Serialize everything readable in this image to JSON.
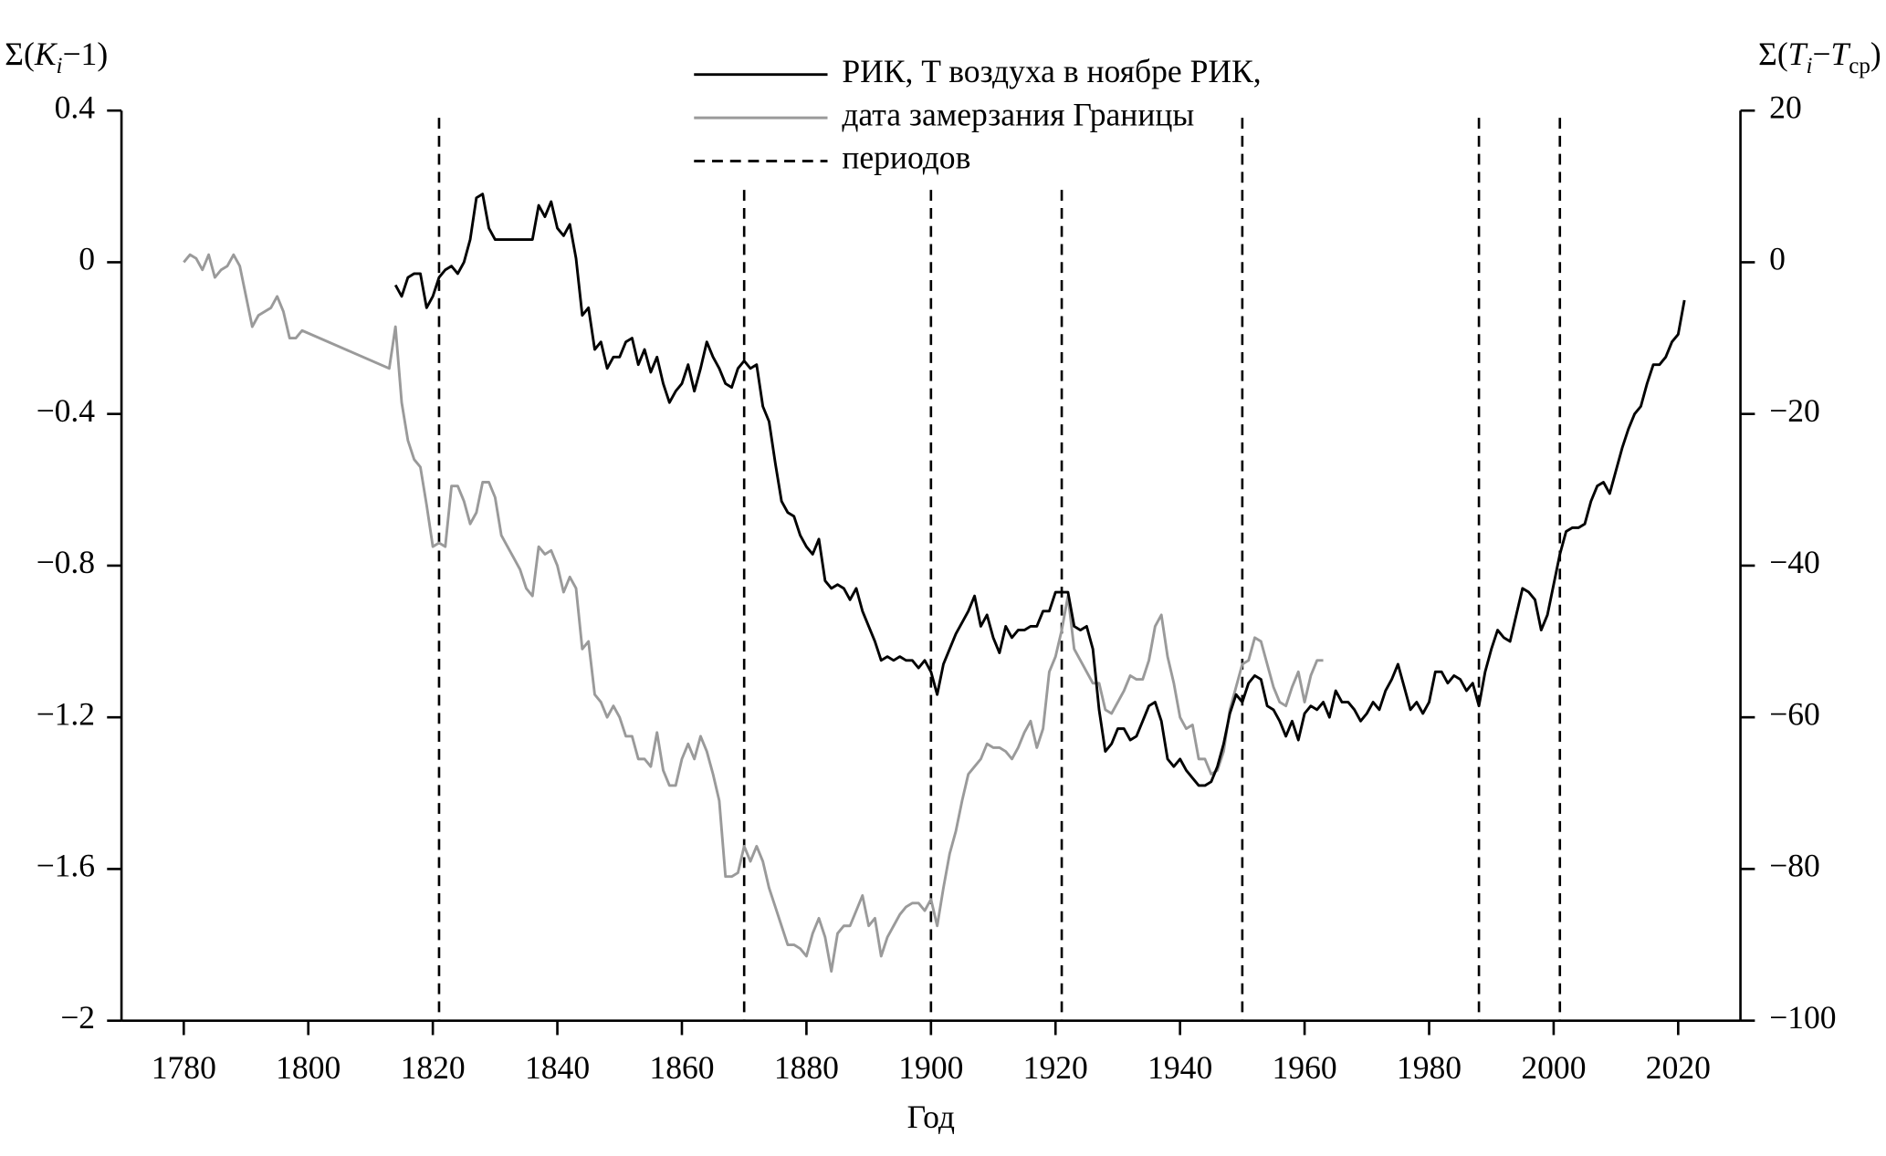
{
  "chart_data": {
    "type": "line",
    "ylabel": [
      "Σ(",
      "K",
      "i",
      "−1)"
    ],
    "y2label": [
      "Σ(",
      "T",
      "i",
      "−",
      "T",
      "ср",
      ")"
    ],
    "xlabel": "Год",
    "xlim": [
      1770,
      2030
    ],
    "xticks": [
      1780,
      1800,
      1820,
      1840,
      1860,
      1880,
      1900,
      1920,
      1940,
      1960,
      1980,
      2000,
      2020
    ],
    "ylim": [
      -2,
      0.4
    ],
    "yticks": [
      {
        "value": -2,
        "label": "−2"
      },
      {
        "value": -1.6,
        "label": "−1.6"
      },
      {
        "value": -1.2,
        "label": "−1.2"
      },
      {
        "value": -0.8,
        "label": "−0.8"
      },
      {
        "value": -0.4,
        "label": "−0.4"
      },
      0,
      0.4
    ],
    "y2lim": [
      -100,
      20
    ],
    "y2ticks": [
      {
        "value": -100,
        "label": "−100"
      },
      {
        "value": -80,
        "label": "−80"
      },
      {
        "value": -60,
        "label": "−60"
      },
      {
        "value": -40,
        "label": "−40"
      },
      {
        "value": -20,
        "label": "−20"
      },
      0,
      20
    ],
    "series": [
      {
        "name": "РИК, T воздуха в ноябре РИК,",
        "color": "#000000",
        "x": [
          1814,
          1815,
          1816,
          1817,
          1818,
          1819,
          1820,
          1821,
          1822,
          1823,
          1824,
          1825,
          1826,
          1827,
          1828,
          1829,
          1830,
          1831,
          1832,
          1833,
          1834,
          1835,
          1836,
          1837,
          1838,
          1839,
          1840,
          1841,
          1842,
          1843,
          1844,
          1845,
          1846,
          1847,
          1848,
          1849,
          1850,
          1851,
          1852,
          1853,
          1854,
          1855,
          1856,
          1857,
          1858,
          1859,
          1860,
          1861,
          1862,
          1863,
          1864,
          1865,
          1866,
          1867,
          1868,
          1869,
          1870,
          1871,
          1872,
          1873,
          1874,
          1875,
          1876,
          1877,
          1878,
          1879,
          1880,
          1881,
          1882,
          1883,
          1884,
          1885,
          1886,
          1887,
          1888,
          1889,
          1890,
          1891,
          1892,
          1893,
          1894,
          1895,
          1896,
          1897,
          1898,
          1899,
          1900,
          1901,
          1902,
          1903,
          1904,
          1905,
          1906,
          1907,
          1908,
          1909,
          1910,
          1911,
          1912,
          1913,
          1914,
          1915,
          1916,
          1917,
          1918,
          1919,
          1920,
          1921,
          1922,
          1923,
          1924,
          1925,
          1926,
          1927,
          1928,
          1929,
          1930,
          1931,
          1932,
          1933,
          1934,
          1935,
          1936,
          1937,
          1938,
          1939,
          1940,
          1941,
          1942,
          1943,
          1944,
          1945,
          1946,
          1947,
          1948,
          1949,
          1950,
          1951,
          1952,
          1953,
          1954,
          1955,
          1956,
          1957,
          1958,
          1959,
          1960,
          1961,
          1962,
          1963,
          1964,
          1965,
          1966,
          1967,
          1968,
          1969,
          1970,
          1971,
          1972,
          1973,
          1974,
          1975,
          1976,
          1977,
          1978,
          1979,
          1980,
          1981,
          1982,
          1983,
          1984,
          1985,
          1986,
          1987,
          1988,
          1989,
          1990,
          1991,
          1992,
          1993,
          1994,
          1995,
          1996,
          1997,
          1998,
          1999,
          2000,
          2001,
          2002,
          2003,
          2004,
          2005,
          2006,
          2007,
          2008,
          2009,
          2010,
          2011,
          2012,
          2013,
          2014,
          2015,
          2016,
          2017,
          2018,
          2019,
          2020,
          2021
        ],
        "values": [
          -0.06,
          -0.09,
          -0.04,
          -0.03,
          -0.03,
          -0.12,
          -0.09,
          -0.04,
          -0.02,
          -0.01,
          -0.03,
          0,
          0.06,
          0.17,
          0.18,
          0.09,
          0.06,
          0.06,
          0.06,
          0.06,
          0.06,
          0.06,
          0.06,
          0.15,
          0.12,
          0.16,
          0.09,
          0.07,
          0.1,
          0.01,
          -0.14,
          -0.12,
          -0.23,
          -0.21,
          -0.28,
          -0.25,
          -0.25,
          -0.21,
          -0.2,
          -0.27,
          -0.23,
          -0.29,
          -0.25,
          -0.32,
          -0.37,
          -0.34,
          -0.32,
          -0.27,
          -0.34,
          -0.28,
          -0.21,
          -0.25,
          -0.28,
          -0.32,
          -0.33,
          -0.28,
          -0.26,
          -0.28,
          -0.27,
          -0.38,
          -0.42,
          -0.53,
          -0.63,
          -0.66,
          -0.67,
          -0.72,
          -0.75,
          -0.77,
          -0.73,
          -0.84,
          -0.86,
          -0.85,
          -0.86,
          -0.89,
          -0.86,
          -0.92,
          -0.96,
          -1.0,
          -1.05,
          -1.04,
          -1.05,
          -1.04,
          -1.05,
          -1.05,
          -1.07,
          -1.05,
          -1.08,
          -1.14,
          -1.06,
          -1.02,
          -0.98,
          -0.95,
          -0.92,
          -0.88,
          -0.96,
          -0.93,
          -0.99,
          -1.03,
          -0.96,
          -0.99,
          -0.97,
          -0.97,
          -0.96,
          -0.96,
          -0.92,
          -0.92,
          -0.87,
          -0.87,
          -0.87,
          -0.96,
          -0.97,
          -0.96,
          -1.02,
          -1.18,
          -1.29,
          -1.27,
          -1.23,
          -1.23,
          -1.26,
          -1.25,
          -1.21,
          -1.17,
          -1.16,
          -1.21,
          -1.31,
          -1.33,
          -1.31,
          -1.34,
          -1.36,
          -1.38,
          -1.38,
          -1.37,
          -1.33,
          -1.27,
          -1.19,
          -1.14,
          -1.16,
          -1.11,
          -1.09,
          -1.1,
          -1.17,
          -1.18,
          -1.21,
          -1.25,
          -1.21,
          -1.26,
          -1.19,
          -1.17,
          -1.18,
          -1.16,
          -1.2,
          -1.13,
          -1.16,
          -1.16,
          -1.18,
          -1.21,
          -1.19,
          -1.16,
          -1.18,
          -1.13,
          -1.1,
          -1.06,
          -1.12,
          -1.18,
          -1.16,
          -1.19,
          -1.16,
          -1.08,
          -1.08,
          -1.11,
          -1.09,
          -1.1,
          -1.13,
          -1.11,
          -1.17,
          -1.08,
          -1.02,
          -0.97,
          -0.99,
          -1.0,
          -0.93,
          -0.86,
          -0.87,
          -0.89,
          -0.97,
          -0.93,
          -0.85,
          -0.77,
          -0.71,
          -0.7,
          -0.7,
          -0.69,
          -0.63,
          -0.59,
          -0.58,
          -0.61,
          -0.55,
          -0.49,
          -0.44,
          -0.4,
          -0.38,
          -0.32,
          -0.27,
          -0.27,
          -0.25,
          -0.21,
          -0.19,
          -0.1
        ]
      },
      {
        "name": "дата замерзания Границы",
        "color": "#9a9a9a",
        "x": [
          1780,
          1781,
          1782,
          1783,
          1784,
          1785,
          1786,
          1787,
          1788,
          1789,
          1790,
          1791,
          1792,
          1793,
          1794,
          1795,
          1796,
          1797,
          1798,
          1799,
          1813,
          1814,
          1815,
          1816,
          1817,
          1818,
          1819,
          1820,
          1821,
          1822,
          1823,
          1824,
          1825,
          1826,
          1827,
          1828,
          1829,
          1830,
          1831,
          1832,
          1833,
          1834,
          1835,
          1836,
          1837,
          1838,
          1839,
          1840,
          1841,
          1842,
          1843,
          1844,
          1845,
          1846,
          1847,
          1848,
          1849,
          1850,
          1851,
          1852,
          1853,
          1854,
          1855,
          1856,
          1857,
          1858,
          1859,
          1860,
          1861,
          1862,
          1863,
          1864,
          1865,
          1866,
          1867,
          1868,
          1869,
          1870,
          1871,
          1872,
          1873,
          1874,
          1875,
          1876,
          1877,
          1878,
          1879,
          1880,
          1881,
          1882,
          1883,
          1884,
          1885,
          1886,
          1887,
          1888,
          1889,
          1890,
          1891,
          1892,
          1893,
          1894,
          1895,
          1896,
          1897,
          1898,
          1899,
          1900,
          1901,
          1902,
          1903,
          1904,
          1905,
          1906,
          1907,
          1908,
          1909,
          1910,
          1911,
          1912,
          1913,
          1914,
          1915,
          1916,
          1917,
          1918,
          1919,
          1920,
          1921,
          1922,
          1923,
          1924,
          1925,
          1926,
          1927,
          1928,
          1929,
          1930,
          1931,
          1932,
          1933,
          1934,
          1935,
          1936,
          1937,
          1938,
          1939,
          1940,
          1941,
          1942,
          1943,
          1944,
          1945,
          1946,
          1947,
          1948,
          1949,
          1950,
          1951,
          1952,
          1953,
          1954,
          1955,
          1956,
          1957,
          1958,
          1959,
          1960,
          1961,
          1962,
          1963
        ],
        "values": [
          0,
          0.02,
          0.01,
          -0.02,
          0.02,
          -0.04,
          -0.02,
          -0.01,
          0.02,
          -0.01,
          -0.09,
          -0.17,
          -0.14,
          -0.13,
          -0.12,
          -0.09,
          -0.13,
          -0.2,
          -0.2,
          -0.18,
          -0.28,
          -0.17,
          -0.37,
          -0.47,
          -0.52,
          -0.54,
          -0.64,
          -0.75,
          -0.74,
          -0.75,
          -0.59,
          -0.59,
          -0.63,
          -0.69,
          -0.66,
          -0.58,
          -0.58,
          -0.62,
          -0.72,
          -0.75,
          -0.78,
          -0.81,
          -0.86,
          -0.88,
          -0.75,
          -0.77,
          -0.76,
          -0.8,
          -0.87,
          -0.83,
          -0.86,
          -1.02,
          -1.0,
          -1.14,
          -1.16,
          -1.2,
          -1.17,
          -1.2,
          -1.25,
          -1.25,
          -1.31,
          -1.31,
          -1.33,
          -1.24,
          -1.34,
          -1.38,
          -1.38,
          -1.31,
          -1.27,
          -1.31,
          -1.25,
          -1.29,
          -1.35,
          -1.42,
          -1.62,
          -1.62,
          -1.61,
          -1.54,
          -1.58,
          -1.54,
          -1.58,
          -1.65,
          -1.7,
          -1.75,
          -1.8,
          -1.8,
          -1.81,
          -1.83,
          -1.77,
          -1.73,
          -1.78,
          -1.87,
          -1.77,
          -1.75,
          -1.75,
          -1.71,
          -1.67,
          -1.75,
          -1.73,
          -1.83,
          -1.78,
          -1.75,
          -1.72,
          -1.7,
          -1.69,
          -1.69,
          -1.71,
          -1.68,
          -1.75,
          -1.65,
          -1.56,
          -1.5,
          -1.42,
          -1.35,
          -1.33,
          -1.31,
          -1.27,
          -1.28,
          -1.28,
          -1.29,
          -1.31,
          -1.28,
          -1.24,
          -1.21,
          -1.28,
          -1.23,
          -1.08,
          -1.04,
          -0.97,
          -0.88,
          -1.02,
          -1.05,
          -1.08,
          -1.11,
          -1.11,
          -1.18,
          -1.19,
          -1.16,
          -1.13,
          -1.09,
          -1.1,
          -1.1,
          -1.05,
          -0.96,
          -0.93,
          -1.04,
          -1.11,
          -1.2,
          -1.23,
          -1.22,
          -1.31,
          -1.31,
          -1.35,
          -1.34,
          -1.29,
          -1.18,
          -1.12,
          -1.06,
          -1.05,
          -0.99,
          -1.0,
          -1.06,
          -1.12,
          -1.16,
          -1.17,
          -1.12,
          -1.08,
          -1.16,
          -1.09,
          -1.05,
          -1.05
        ]
      }
    ],
    "periods": {
      "name": "периодов",
      "color": "#000000",
      "x": [
        1821,
        1870,
        1900,
        1921,
        1950,
        1988,
        2001
      ]
    }
  }
}
